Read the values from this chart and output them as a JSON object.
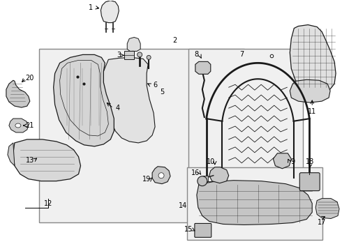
{
  "bg_color": "#ffffff",
  "lc": "#1a1a1a",
  "gray_fill": "#e8e8e8",
  "dark_fill": "#c8c8c8",
  "box_fill": "#f0f0f0",
  "box2_fill": "#ebebeb"
}
